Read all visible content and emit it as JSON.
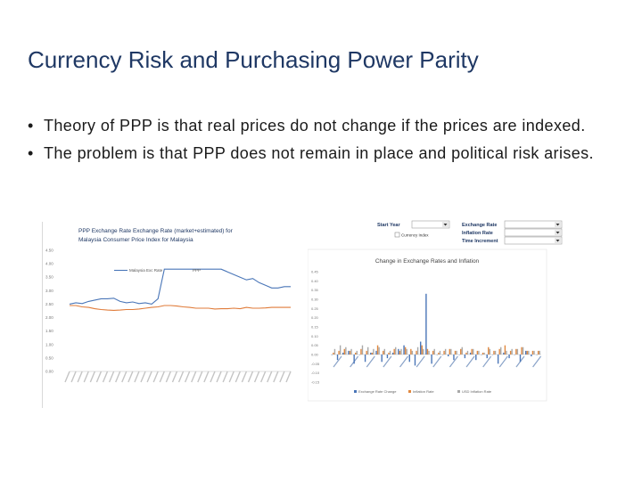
{
  "slide": {
    "title": "Currency Risk and Purchasing Power Parity",
    "bullets": [
      "Theory of PPP is that real prices do not change if the prices are indexed.",
      "The problem is that PPP does not remain in place and political risk arises."
    ],
    "bullet_glyph": "•"
  },
  "controls": {
    "start_year_label": "Start Year",
    "start_year_value": "",
    "currency_index_label": "Currency Index",
    "exchange_rate_label": "Exchange Rate",
    "exchange_rate_value": "",
    "inflation_rate_label": "Inflation Rate",
    "inflation_rate_value": "",
    "time_increment_label": "Time Increment",
    "time_increment_value": "",
    "colors": {
      "text": "#1f3864",
      "border": "#9e9e9e"
    }
  },
  "chart_data": [
    {
      "type": "line",
      "title_lines": [
        "PPP Exchange Rate Exchange Rate (market+estimated) for",
        "Malaysia Consumer Price Index for Malaysia"
      ],
      "xlabel": "",
      "ylabel": "",
      "ylim": [
        0,
        4.5
      ],
      "yticks": [
        "0.00",
        "0.50",
        "1.00",
        "1.50",
        "2.00",
        "2.50",
        "3.00",
        "3.50",
        "4.00",
        "4.50"
      ],
      "legend": [
        "Malaysia Exc Rate",
        "PPP"
      ],
      "grid": false,
      "colors": {
        "exchange": "#4a76b8",
        "ppp": "#e07b39"
      },
      "x_count": 36,
      "series": [
        {
          "name": "Malaysia Exc Rate",
          "values": [
            2.5,
            2.55,
            2.52,
            2.6,
            2.65,
            2.7,
            2.7,
            2.72,
            2.6,
            2.55,
            2.58,
            2.52,
            2.55,
            2.5,
            2.7,
            3.8,
            3.8,
            3.8,
            3.8,
            3.8,
            3.8,
            3.8,
            3.8,
            3.8,
            3.8,
            3.7,
            3.6,
            3.5,
            3.4,
            3.45,
            3.3,
            3.2,
            3.1,
            3.1,
            3.15,
            3.15
          ]
        },
        {
          "name": "PPP",
          "values": [
            2.45,
            2.45,
            2.4,
            2.38,
            2.33,
            2.3,
            2.28,
            2.27,
            2.28,
            2.3,
            2.3,
            2.32,
            2.35,
            2.38,
            2.4,
            2.45,
            2.45,
            2.43,
            2.4,
            2.38,
            2.35,
            2.35,
            2.35,
            2.32,
            2.33,
            2.33,
            2.35,
            2.33,
            2.38,
            2.35,
            2.35,
            2.36,
            2.38,
            2.38,
            2.38,
            2.38
          ]
        }
      ]
    },
    {
      "type": "bar",
      "title": "Change in Exchange Rates and Inflation",
      "xlabel": "",
      "ylabel": "",
      "ylim": [
        -0.15,
        0.45
      ],
      "yticks": [
        "-0.15",
        "-0.10",
        "-0.05",
        "0.00",
        "0.05",
        "0.10",
        "0.15",
        "0.20",
        "0.25",
        "0.30",
        "0.35",
        "0.40",
        "0.45"
      ],
      "legend": [
        "Exchange Rate Change",
        "Inflation Rate",
        "USD Inflation Rate"
      ],
      "colors": {
        "exchange": "#4a76b8",
        "inflation": "#e0883f",
        "usd": "#a9a9a9"
      },
      "series": [
        {
          "name": "Exchange Rate Change",
          "values": [
            0,
            -0.03,
            0.01,
            0.02,
            -0.05,
            0.0,
            -0.04,
            0.01,
            0.02,
            -0.04,
            -0.02,
            0.01,
            0.03,
            0.05,
            -0.04,
            -0.06,
            0.07,
            0.33,
            -0.05,
            0.0,
            0.0,
            -0.01,
            -0.03,
            0.0,
            -0.02,
            0.01,
            -0.03,
            0.0,
            -0.02,
            0.0,
            -0.05,
            0.01,
            -0.02,
            0.0,
            -0.04,
            0.02,
            -0.01,
            0.0
          ]
        },
        {
          "name": "Inflation Rate",
          "values": [
            0.01,
            0.02,
            0.03,
            0.02,
            0.01,
            0.03,
            0.02,
            0.01,
            0.05,
            0.02,
            0.01,
            0.03,
            0.02,
            0.04,
            0.03,
            0.02,
            0.05,
            0.03,
            0.02,
            0.01,
            0.02,
            0.03,
            0.02,
            0.03,
            0.01,
            0.03,
            0.02,
            0.01,
            0.04,
            0.02,
            0.03,
            0.05,
            0.02,
            0.03,
            0.04,
            0.02,
            0.02,
            0.02
          ]
        },
        {
          "name": "USD Inflation Rate",
          "values": [
            0.03,
            0.05,
            0.04,
            0.03,
            0.02,
            0.05,
            0.04,
            0.03,
            0.04,
            0.03,
            0.02,
            0.04,
            0.03,
            0.03,
            0.02,
            0.04,
            0.03,
            0.02,
            0.03,
            0.02,
            0.03,
            0.03,
            0.02,
            0.04,
            0.02,
            0.03,
            0.02,
            0.01,
            0.03,
            0.02,
            0.04,
            0.02,
            0.03,
            0.03,
            0.04,
            0.02,
            0.02,
            0.02
          ]
        }
      ]
    }
  ]
}
